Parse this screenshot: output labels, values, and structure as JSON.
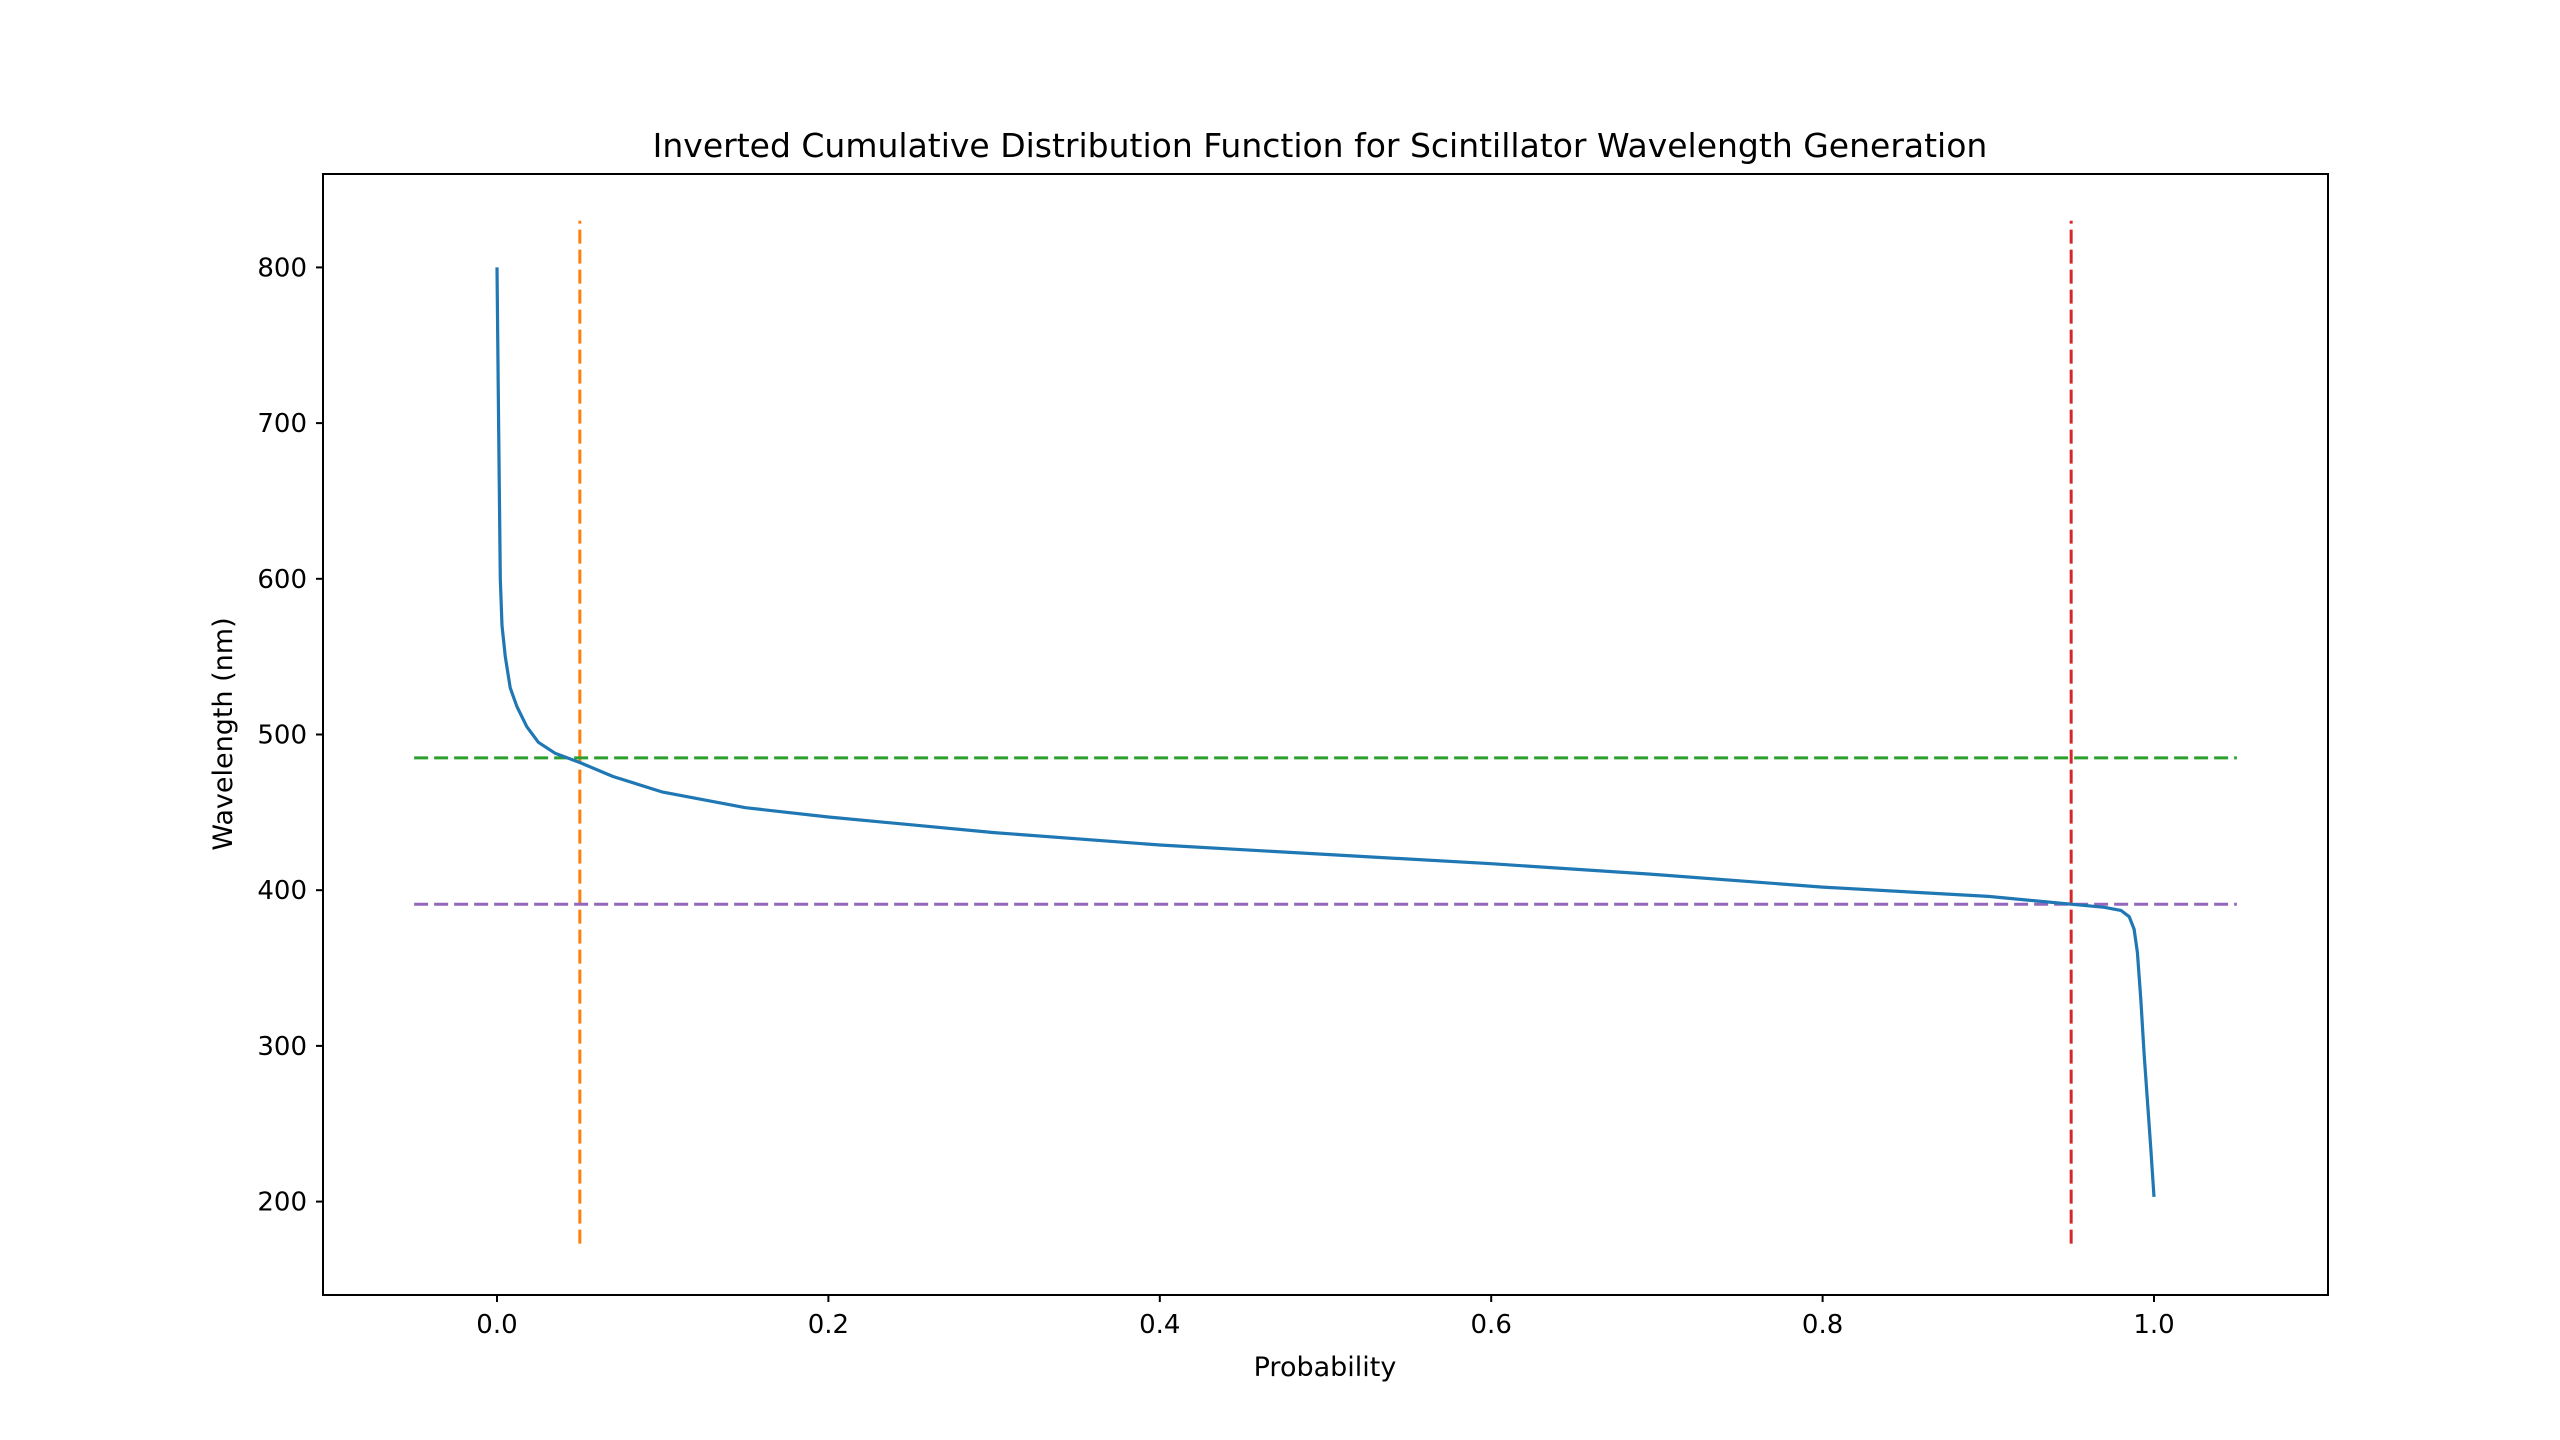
{
  "chart_data": {
    "type": "line",
    "title": "Inverted Cumulative Distribution Function for Scintillator Wavelength Generation",
    "xlabel": "Probability",
    "ylabel": "Wavelength (nm)",
    "xlim": [
      -0.105,
      1.105
    ],
    "ylim": [
      140,
      860
    ],
    "xticks": [
      0.0,
      0.2,
      0.4,
      0.6,
      0.8,
      1.0
    ],
    "xtick_labels": [
      "0.0",
      "0.2",
      "0.4",
      "0.6",
      "0.8",
      "1.0"
    ],
    "yticks": [
      200,
      300,
      400,
      500,
      600,
      700,
      800
    ],
    "ytick_labels": [
      "200",
      "300",
      "400",
      "500",
      "600",
      "700",
      "800"
    ],
    "grid": false,
    "legend": "none",
    "series": [
      {
        "color": "#1f77b4",
        "style": "solid",
        "x": [
          0.0,
          0.001,
          0.002,
          0.003,
          0.005,
          0.008,
          0.012,
          0.018,
          0.025,
          0.035,
          0.05,
          0.07,
          0.1,
          0.15,
          0.2,
          0.3,
          0.4,
          0.5,
          0.6,
          0.7,
          0.8,
          0.9,
          0.95,
          0.97,
          0.98,
          0.985,
          0.988,
          0.99,
          0.992,
          0.994,
          0.996,
          0.998,
          1.0
        ],
        "y": [
          800,
          700,
          600,
          570,
          550,
          530,
          518,
          505,
          495,
          488,
          482,
          473,
          463,
          453,
          447,
          437,
          429,
          423,
          417,
          410,
          402,
          396,
          391,
          389,
          387,
          383,
          375,
          360,
          330,
          295,
          265,
          235,
          203
        ]
      }
    ],
    "reference_lines": [
      {
        "orientation": "vertical",
        "x": 0.05,
        "y_range": [
          173,
          830
        ],
        "color": "#ff7f0e",
        "style": "dashed"
      },
      {
        "orientation": "vertical",
        "x": 0.95,
        "y_range": [
          173,
          830
        ],
        "color": "#d62728",
        "style": "dashed"
      },
      {
        "orientation": "horizontal",
        "y": 485,
        "x_range": [
          -0.05,
          1.05
        ],
        "color": "#2ca02c",
        "style": "dashed"
      },
      {
        "orientation": "horizontal",
        "y": 391,
        "x_range": [
          -0.05,
          1.05
        ],
        "color": "#9467bd",
        "style": "dashed"
      }
    ]
  }
}
